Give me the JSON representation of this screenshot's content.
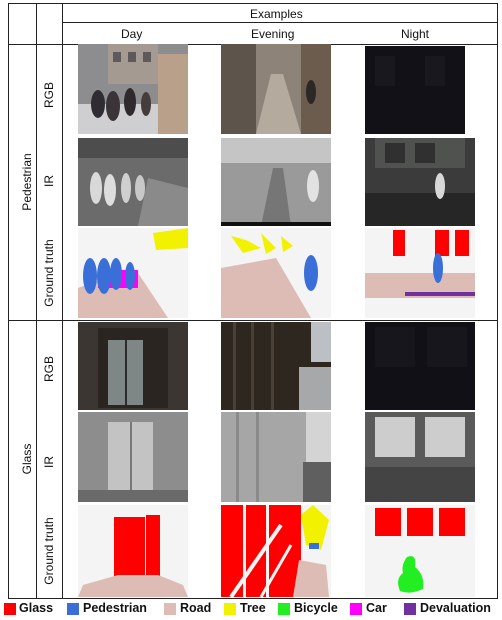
{
  "header": {
    "examples": "Examples",
    "columns": [
      "Day",
      "Evening",
      "Night"
    ]
  },
  "groups": [
    {
      "label": "Pedestrian",
      "rows": [
        "RGB",
        "IR",
        "Ground  truth"
      ]
    },
    {
      "label": "Glass",
      "rows": [
        "RGB",
        "IR",
        "Ground truth"
      ]
    }
  ],
  "legend": [
    {
      "label": "Glass",
      "color": "#ff0000"
    },
    {
      "label": "Pedestrian",
      "color": "#3a6fd8"
    },
    {
      "label": "Road",
      "color": "#dcbcb4"
    },
    {
      "label": "Tree",
      "color": "#f2f200"
    },
    {
      "label": "Bicycle",
      "color": "#22ee22"
    },
    {
      "label": "Car",
      "color": "#ff00ff"
    },
    {
      "label": "Devaluation",
      "color": "#7030a0"
    }
  ]
}
